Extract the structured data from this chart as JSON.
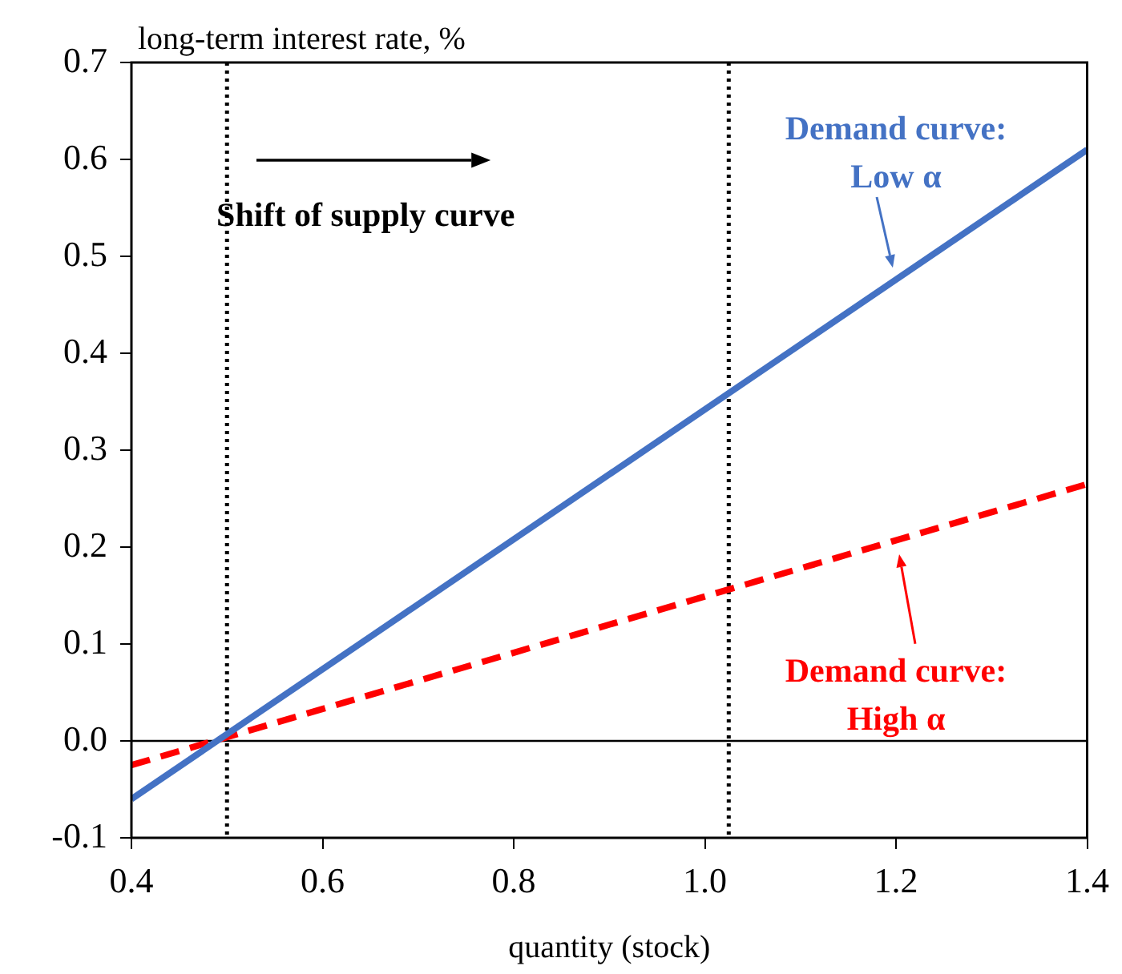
{
  "chart_data": {
    "type": "line",
    "ylabel": "long-term interest rate, %",
    "xlabel": "quantity (stock)",
    "x": [
      0.4,
      1.4
    ],
    "series": [
      {
        "name": "Demand curve: Low α",
        "color": "#4472c4",
        "values": [
          -0.06,
          0.61
        ],
        "line_style": "solid"
      },
      {
        "name": "Demand curve: High α",
        "color": "#ff0000",
        "values": [
          -0.025,
          0.265
        ],
        "line_style": "dashed"
      }
    ],
    "xlim": [
      0.4,
      1.4
    ],
    "xticks": [
      0.4,
      0.6,
      0.8,
      {
        "value": 1,
        "label": "1.0"
      },
      1.2,
      1.4
    ],
    "ylim": [
      -0.1,
      0.7
    ],
    "yticks": [
      -0.1,
      {
        "value": 0,
        "label": "0.0"
      },
      0.1,
      0.2,
      0.3,
      0.4,
      0.5,
      0.6,
      0.7
    ],
    "ref_lines": [
      {
        "axis": "y",
        "value": 0,
        "color": "#000000",
        "line_style": "solid"
      },
      {
        "axis": "x",
        "value": 0.5,
        "color": "#000000",
        "line_style": "dotted"
      },
      {
        "axis": "x",
        "value": 1.025,
        "color": "#000000",
        "line_style": "dotted"
      }
    ],
    "annotations": [
      "Shift of supply curve"
    ],
    "grid": false,
    "legend": "right",
    "marker": "none"
  }
}
